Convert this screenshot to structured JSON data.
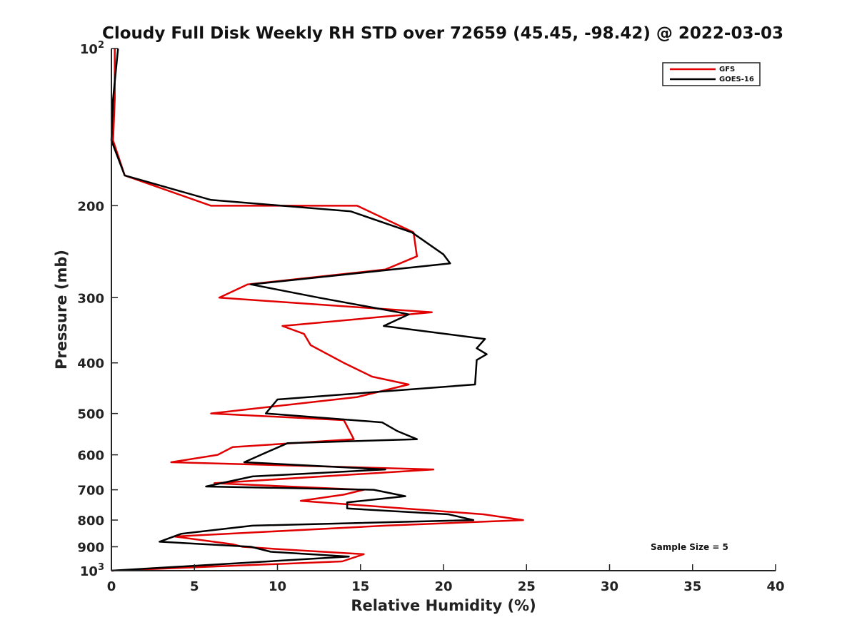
{
  "chart_data": {
    "type": "line",
    "title": "Cloudy Full Disk Weekly RH STD over 72659 (45.45, -98.42) @ 2022-03-03",
    "xlabel": "Relative Humidity (%)",
    "ylabel": "Pressure (mb)",
    "xlim": [
      0,
      40
    ],
    "ylim": [
      100,
      1000
    ],
    "y_scale": "log",
    "y_reversed": true,
    "x_ticks": [
      "0",
      "5",
      "10",
      "15",
      "20",
      "25",
      "30",
      "35",
      "40"
    ],
    "y_ticks": [
      {
        "value": 100,
        "base": "10",
        "exp": "2"
      },
      {
        "value": 200,
        "label": "200"
      },
      {
        "value": 300,
        "label": "300"
      },
      {
        "value": 400,
        "label": "400"
      },
      {
        "value": 500,
        "label": "500"
      },
      {
        "value": 600,
        "label": "600"
      },
      {
        "value": 700,
        "label": "700"
      },
      {
        "value": 800,
        "label": "800"
      },
      {
        "value": 900,
        "label": "900"
      },
      {
        "value": 1000,
        "base": "10",
        "exp": "3"
      }
    ],
    "legend_position": "top-right",
    "annotation": "Sample Size = 5",
    "series": [
      {
        "name": "GFS",
        "color": "#e00000",
        "points": [
          [
            0.2,
            100
          ],
          [
            0.2,
            125
          ],
          [
            0.1,
            150
          ],
          [
            0.8,
            175
          ],
          [
            6.0,
            200
          ],
          [
            14.8,
            200
          ],
          [
            18.2,
            225
          ],
          [
            18.4,
            250
          ],
          [
            16.5,
            265
          ],
          [
            8.2,
            283
          ],
          [
            6.5,
            300
          ],
          [
            19.3,
            320
          ],
          [
            10.3,
            340
          ],
          [
            11.6,
            352
          ],
          [
            12.0,
            370
          ],
          [
            14.0,
            400
          ],
          [
            15.7,
            425
          ],
          [
            17.9,
            440
          ],
          [
            14.8,
            465
          ],
          [
            6.0,
            500
          ],
          [
            14.0,
            515
          ],
          [
            14.6,
            560
          ],
          [
            7.3,
            580
          ],
          [
            6.4,
            600
          ],
          [
            3.6,
            620
          ],
          [
            19.4,
            640
          ],
          [
            6.2,
            680
          ],
          [
            15.2,
            700
          ],
          [
            14.0,
            715
          ],
          [
            11.4,
            735
          ],
          [
            22.4,
            780
          ],
          [
            24.8,
            800
          ],
          [
            16.5,
            820
          ],
          [
            3.8,
            860
          ],
          [
            7.3,
            890
          ],
          [
            7.9,
            900
          ],
          [
            10.2,
            910
          ],
          [
            15.2,
            930
          ],
          [
            13.9,
            960
          ],
          [
            0.0,
            1000
          ]
        ]
      },
      {
        "name": "GOES-16",
        "color": "#000000",
        "points": [
          [
            0.4,
            100
          ],
          [
            0.1,
            125
          ],
          [
            0.0,
            150
          ],
          [
            0.8,
            175
          ],
          [
            6.0,
            195
          ],
          [
            14.4,
            205
          ],
          [
            18.1,
            225
          ],
          [
            20.0,
            248
          ],
          [
            20.4,
            258
          ],
          [
            8.4,
            283
          ],
          [
            12.5,
            300
          ],
          [
            17.3,
            320
          ],
          [
            17.9,
            323
          ],
          [
            16.4,
            340
          ],
          [
            22.5,
            360
          ],
          [
            22.0,
            375
          ],
          [
            22.6,
            385
          ],
          [
            22.0,
            395
          ],
          [
            21.9,
            440
          ],
          [
            10.0,
            470
          ],
          [
            9.3,
            500
          ],
          [
            16.3,
            520
          ],
          [
            17.2,
            540
          ],
          [
            18.4,
            560
          ],
          [
            10.6,
            570
          ],
          [
            9.0,
            600
          ],
          [
            8.0,
            620
          ],
          [
            16.5,
            640
          ],
          [
            8.5,
            660
          ],
          [
            5.7,
            690
          ],
          [
            15.8,
            700
          ],
          [
            17.7,
            720
          ],
          [
            14.2,
            740
          ],
          [
            14.2,
            760
          ],
          [
            20.3,
            780
          ],
          [
            21.8,
            800
          ],
          [
            8.5,
            820
          ],
          [
            4.2,
            850
          ],
          [
            2.9,
            880
          ],
          [
            8.4,
            900
          ],
          [
            9.6,
            920
          ],
          [
            14.3,
            940
          ],
          [
            0.0,
            1000
          ]
        ]
      }
    ]
  }
}
